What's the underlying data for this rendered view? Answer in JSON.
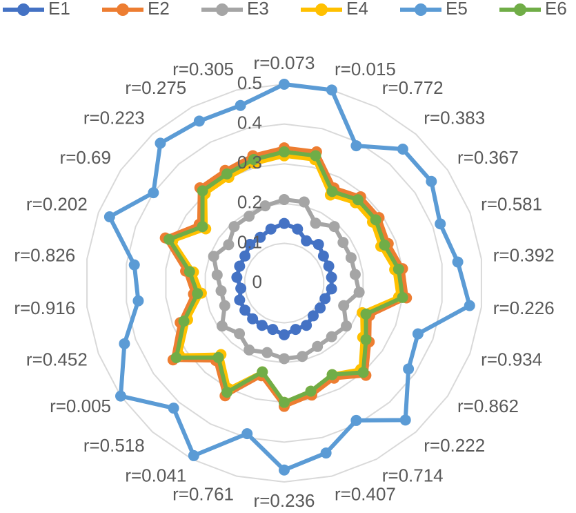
{
  "chart_data": {
    "type": "radar",
    "categories": [
      "r=0.073",
      "r=0.015",
      "r=0.772",
      "r=0.383",
      "r=0.367",
      "r=0.581",
      "r=0.392",
      "r=0.226",
      "r=0.934",
      "r=0.862",
      "r=0.222",
      "r=0.714",
      "r=0.407",
      "r=0.236",
      "r=0.761",
      "r=0.041",
      "r=0.518",
      "r=0.005",
      "r=0.452",
      "r=0.916",
      "r=0.826",
      "r=0.202",
      "r=0.69",
      "r=0.223",
      "r=0.275",
      "r=0.305"
    ],
    "ylim": [
      0,
      0.5
    ],
    "yticks": [
      0,
      0.1,
      0.2,
      0.3,
      0.4,
      0.5
    ],
    "grid": true,
    "series": [
      {
        "name": "E1",
        "color": "#4472c4",
        "values": [
          0.15,
          0.14,
          0.12,
          0.13,
          0.12,
          0.12,
          0.12,
          0.12,
          0.11,
          0.11,
          0.11,
          0.12,
          0.12,
          0.13,
          0.12,
          0.12,
          0.12,
          0.12,
          0.12,
          0.11,
          0.12,
          0.12,
          0.12,
          0.13,
          0.13,
          0.14
        ]
      },
      {
        "name": "E2",
        "color": "#ed7d31",
        "values": [
          0.34,
          0.34,
          0.27,
          0.29,
          0.29,
          0.28,
          0.3,
          0.31,
          0.23,
          0.26,
          0.31,
          0.27,
          0.29,
          0.31,
          0.24,
          0.32,
          0.26,
          0.34,
          0.28,
          0.23,
          0.25,
          0.32,
          0.26,
          0.32,
          0.32,
          0.33
        ]
      },
      {
        "name": "E3",
        "color": "#a5a5a5",
        "values": [
          0.21,
          0.21,
          0.17,
          0.19,
          0.18,
          0.18,
          0.18,
          0.19,
          0.16,
          0.19,
          0.18,
          0.18,
          0.19,
          0.19,
          0.18,
          0.19,
          0.17,
          0.19,
          0.16,
          0.16,
          0.17,
          0.19,
          0.17,
          0.19,
          0.19,
          0.2
        ]
      },
      {
        "name": "E4",
        "color": "#ffc000",
        "values": [
          0.32,
          0.32,
          0.25,
          0.27,
          0.27,
          0.26,
          0.28,
          0.29,
          0.21,
          0.24,
          0.29,
          0.26,
          0.28,
          0.3,
          0.23,
          0.3,
          0.24,
          0.32,
          0.26,
          0.21,
          0.23,
          0.3,
          0.24,
          0.3,
          0.3,
          0.31
        ]
      },
      {
        "name": "E5",
        "color": "#5b9bd5",
        "values": [
          0.5,
          0.5,
          0.39,
          0.45,
          0.45,
          0.42,
          0.44,
          0.47,
          0.36,
          0.38,
          0.46,
          0.39,
          0.44,
          0.47,
          0.39,
          0.49,
          0.42,
          0.5,
          0.43,
          0.37,
          0.38,
          0.47,
          0.4,
          0.47,
          0.46,
          0.46
        ]
      },
      {
        "name": "E6",
        "color": "#70ad47",
        "values": [
          0.33,
          0.33,
          0.26,
          0.28,
          0.28,
          0.27,
          0.29,
          0.3,
          0.22,
          0.25,
          0.3,
          0.26,
          0.28,
          0.3,
          0.23,
          0.31,
          0.25,
          0.33,
          0.27,
          0.22,
          0.24,
          0.31,
          0.25,
          0.31,
          0.31,
          0.32
        ]
      }
    ]
  }
}
